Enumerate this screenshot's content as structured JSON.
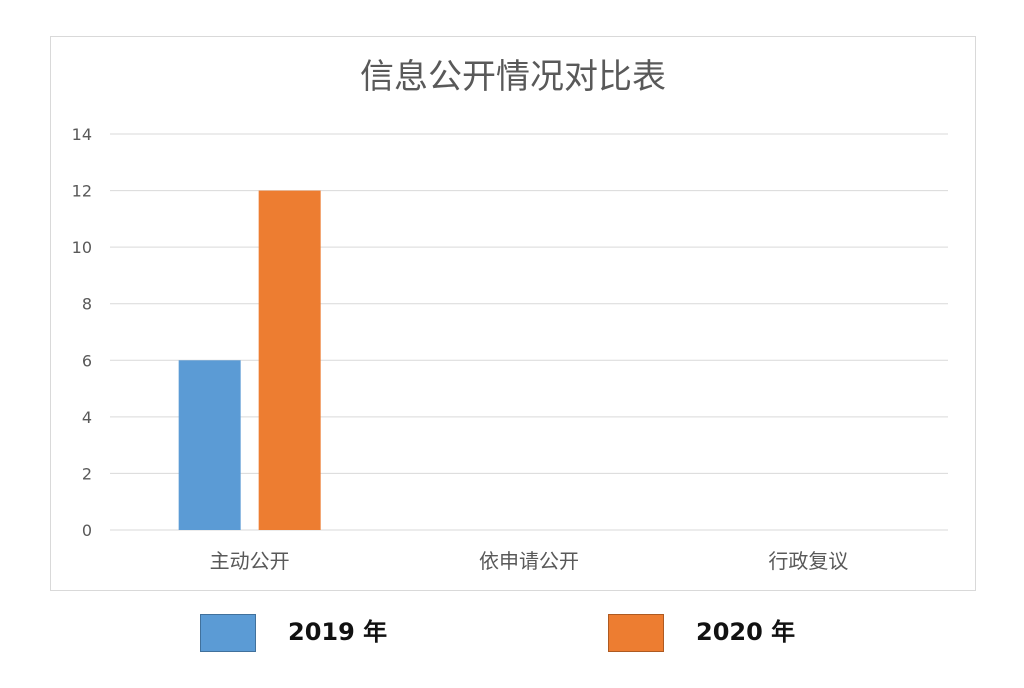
{
  "chart_data": {
    "type": "bar",
    "title": "信息公开情况对比表",
    "categories": [
      "主动公开",
      "依申请公开",
      "行政复议"
    ],
    "series": [
      {
        "name": "2019 年",
        "values": [
          6,
          0,
          0
        ],
        "color": "#5b9bd5"
      },
      {
        "name": "2020 年",
        "values": [
          12,
          0,
          0
        ],
        "color": "#ed7d31"
      }
    ],
    "ylim": [
      0,
      14
    ],
    "yticks": [
      0,
      2,
      4,
      6,
      8,
      10,
      12,
      14
    ],
    "grid": true,
    "legend": "bottom",
    "colors": {
      "grid": "#d9d9d9",
      "tick_text": "#595959",
      "title_text": "#595959",
      "frame": "#d9d9d9"
    }
  }
}
